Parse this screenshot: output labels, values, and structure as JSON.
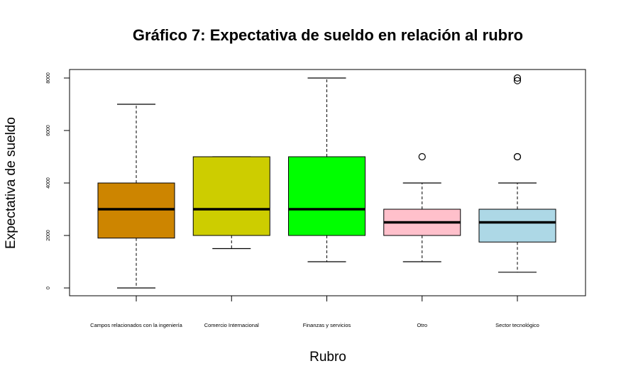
{
  "chart_data": {
    "type": "boxplot",
    "title": "Gráfico 7: Expectativa de sueldo en relación al rubro",
    "xlabel": "Rubro",
    "ylabel": "Expectativa de sueldo",
    "ylim": [
      -300,
      8300
    ],
    "yticks": [
      0,
      2000,
      4000,
      6000,
      8000
    ],
    "ytick_labels": [
      "0",
      "2000",
      "4000",
      "6000",
      "8000"
    ],
    "grid": false,
    "legend": "none",
    "categories": [
      "Campos relacionados con la ingeniería",
      "Comercio Internacional",
      "Finanzas y servicios",
      "Otro",
      "Sector tecnológico"
    ],
    "boxes": [
      {
        "whisker_low": 0,
        "q1": 1900,
        "median": 3000,
        "q3": 4000,
        "whisker_high": 7000,
        "outliers": [],
        "color": "#CD8500"
      },
      {
        "whisker_low": 1500,
        "q1": 2000,
        "median": 3000,
        "q3": 5000,
        "whisker_high": 5000,
        "outliers": [],
        "color": "#CDCD00"
      },
      {
        "whisker_low": 1000,
        "q1": 2000,
        "median": 3000,
        "q3": 5000,
        "whisker_high": 8000,
        "outliers": [],
        "color": "#00FF00"
      },
      {
        "whisker_low": 1000,
        "q1": 2000,
        "median": 2500,
        "q3": 3000,
        "whisker_high": 4000,
        "outliers": [
          5000
        ],
        "color": "#FFC0CB"
      },
      {
        "whisker_low": 600,
        "q1": 1750,
        "median": 2500,
        "q3": 3000,
        "whisker_high": 4000,
        "outliers": [
          5000,
          5000,
          7900,
          8000
        ],
        "color": "#ADD8E6"
      }
    ]
  }
}
